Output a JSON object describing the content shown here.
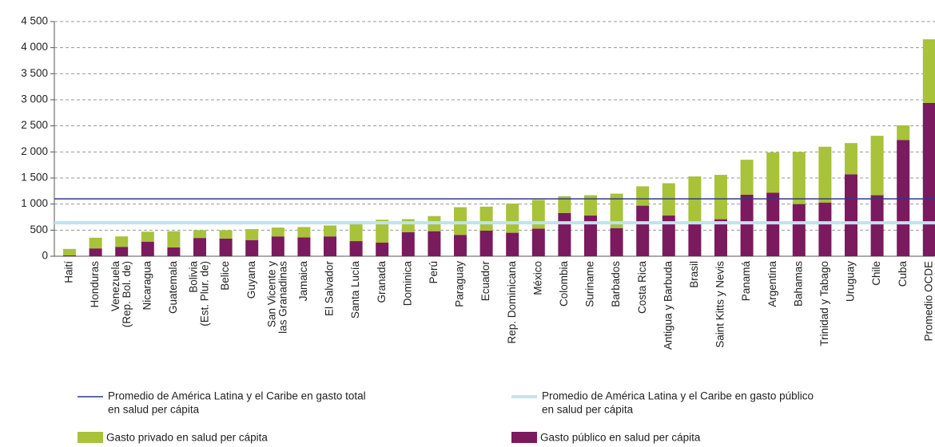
{
  "chart_data": {
    "type": "stacked_bar",
    "categories": [
      [
        "Haití"
      ],
      [
        "Honduras"
      ],
      [
        "Venezuela",
        "(Rep. Bol. de)"
      ],
      [
        "Nicaragua"
      ],
      [
        "Guatemala"
      ],
      [
        "Bolivia",
        "(Est. Plur. de)"
      ],
      [
        "Belice"
      ],
      [
        "Guyana"
      ],
      [
        "San Vicente y",
        "las Granadinas"
      ],
      [
        "Jamaica"
      ],
      [
        "El Salvador"
      ],
      [
        "Santa Lucía"
      ],
      [
        "Granada"
      ],
      [
        "Dominica"
      ],
      [
        "Perú"
      ],
      [
        "Paraguay"
      ],
      [
        "Ecuador"
      ],
      [
        "Rep. Dominicana"
      ],
      [
        "México"
      ],
      [
        "Colombia"
      ],
      [
        "Suriname"
      ],
      [
        "Barbados"
      ],
      [
        "Costa Rica"
      ],
      [
        "Antigua y Barbuda"
      ],
      [
        "Brasil"
      ],
      [
        "Saint Kitts y Nevis"
      ],
      [
        "Panamá"
      ],
      [
        "Argentina"
      ],
      [
        "Bahamas"
      ],
      [
        "Trinidad y Tabago"
      ],
      [
        "Uruguay"
      ],
      [
        "Chile"
      ],
      [
        "Cuba"
      ],
      [
        "Promedio OCDE"
      ]
    ],
    "series": [
      {
        "name": "Gasto público en salud per cápita",
        "color": "#7b1a5e",
        "values": [
          15,
          150,
          180,
          280,
          170,
          350,
          340,
          310,
          380,
          360,
          380,
          290,
          260,
          460,
          480,
          410,
          490,
          450,
          530,
          830,
          780,
          540,
          970,
          780,
          620,
          710,
          1180,
          1220,
          1000,
          1030,
          1570,
          1170,
          2230,
          2940
        ]
      },
      {
        "name": "Gasto privado en salud per cápita",
        "color": "#a8c23a",
        "values": [
          125,
          205,
          200,
          190,
          310,
          150,
          160,
          210,
          170,
          200,
          210,
          330,
          440,
          250,
          290,
          530,
          460,
          560,
          550,
          320,
          390,
          660,
          370,
          620,
          910,
          850,
          670,
          770,
          1000,
          1070,
          600,
          1140,
          280,
          1220
        ]
      }
    ],
    "reference_lines": [
      {
        "name": [
          "Promedio de América Latina y el Caribe en gasto total",
          "en salud per cápita"
        ],
        "value": 1100,
        "color": "#2e3a87"
      },
      {
        "name": [
          "Promedio de América Latina y el Caribe en gasto público",
          "en salud per cápita"
        ],
        "value": 640,
        "color": "#bfe3ef"
      }
    ],
    "ylim": [
      0,
      4500
    ],
    "yticks": [
      0,
      500,
      {
        "value": 1000,
        "label": "1 000"
      },
      {
        "value": 1500,
        "label": "1 500"
      },
      {
        "value": 2000,
        "label": "2 000"
      },
      {
        "value": 2500,
        "label": "2 500"
      },
      {
        "value": 3000,
        "label": "3 000"
      },
      {
        "value": 3500,
        "label": "3 500"
      },
      {
        "value": 4000,
        "label": "4 000"
      },
      {
        "value": 4500,
        "label": "4 500"
      }
    ],
    "grid": true
  }
}
